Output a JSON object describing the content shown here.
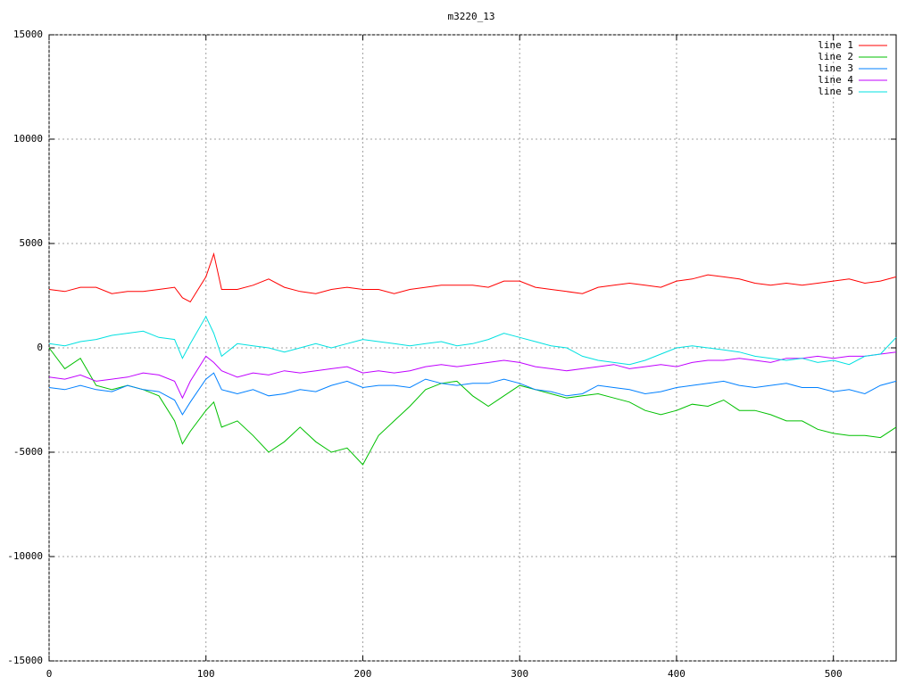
{
  "chart_data": {
    "type": "line",
    "title": "m3220_13",
    "x": [
      0,
      10,
      20,
      30,
      40,
      50,
      60,
      70,
      80,
      85,
      90,
      100,
      105,
      110,
      120,
      130,
      140,
      150,
      160,
      170,
      180,
      190,
      200,
      210,
      220,
      230,
      240,
      250,
      260,
      270,
      280,
      290,
      300,
      310,
      320,
      330,
      340,
      350,
      360,
      370,
      380,
      390,
      400,
      410,
      420,
      430,
      440,
      450,
      460,
      470,
      480,
      490,
      500,
      510,
      520,
      530,
      540
    ],
    "series": [
      {
        "name": "line 1",
        "color": "#ff0000",
        "values": [
          2800,
          2700,
          2900,
          2900,
          2600,
          2700,
          2700,
          2800,
          2900,
          2400,
          2200,
          3400,
          4500,
          2800,
          2800,
          3000,
          3300,
          2900,
          2700,
          2600,
          2800,
          2900,
          2800,
          2800,
          2600,
          2800,
          2900,
          3000,
          3000,
          3000,
          2900,
          3200,
          3200,
          2900,
          2800,
          2700,
          2600,
          2900,
          3000,
          3100,
          3000,
          2900,
          3200,
          3300,
          3500,
          3400,
          3300,
          3100,
          3000,
          3100,
          3000,
          3100,
          3200,
          3300,
          3100,
          3200,
          3400
        ]
      },
      {
        "name": "line 2",
        "color": "#00c000",
        "values": [
          0,
          -1000,
          -500,
          -1800,
          -2000,
          -1800,
          -2000,
          -2300,
          -3500,
          -4600,
          -4000,
          -3000,
          -2600,
          -3800,
          -3500,
          -4200,
          -5000,
          -4500,
          -3800,
          -4500,
          -5000,
          -4800,
          -5600,
          -4200,
          -3500,
          -2800,
          -2000,
          -1700,
          -1600,
          -2300,
          -2800,
          -2300,
          -1800,
          -2000,
          -2200,
          -2400,
          -2300,
          -2200,
          -2400,
          -2600,
          -3000,
          -3200,
          -3000,
          -2700,
          -2800,
          -2500,
          -3000,
          -3000,
          -3200,
          -3500,
          -3500,
          -3900,
          -4100,
          -4200,
          -4200,
          -4300,
          -3800
        ]
      },
      {
        "name": "line 3",
        "color": "#0080ff",
        "values": [
          -1900,
          -2000,
          -1800,
          -2000,
          -2100,
          -1800,
          -2000,
          -2100,
          -2500,
          -3200,
          -2600,
          -1500,
          -1200,
          -2000,
          -2200,
          -2000,
          -2300,
          -2200,
          -2000,
          -2100,
          -1800,
          -1600,
          -1900,
          -1800,
          -1800,
          -1900,
          -1500,
          -1700,
          -1800,
          -1700,
          -1700,
          -1500,
          -1700,
          -2000,
          -2100,
          -2300,
          -2200,
          -1800,
          -1900,
          -2000,
          -2200,
          -2100,
          -1900,
          -1800,
          -1700,
          -1600,
          -1800,
          -1900,
          -1800,
          -1700,
          -1900,
          -1900,
          -2100,
          -2000,
          -2200,
          -1800,
          -1600
        ]
      },
      {
        "name": "line 4",
        "color": "#c000ff",
        "values": [
          -1400,
          -1500,
          -1300,
          -1600,
          -1500,
          -1400,
          -1200,
          -1300,
          -1600,
          -2400,
          -1600,
          -400,
          -700,
          -1100,
          -1400,
          -1200,
          -1300,
          -1100,
          -1200,
          -1100,
          -1000,
          -900,
          -1200,
          -1100,
          -1200,
          -1100,
          -900,
          -800,
          -900,
          -800,
          -700,
          -600,
          -700,
          -900,
          -1000,
          -1100,
          -1000,
          -900,
          -800,
          -1000,
          -900,
          -800,
          -900,
          -700,
          -600,
          -600,
          -500,
          -600,
          -700,
          -500,
          -500,
          -400,
          -500,
          -400,
          -400,
          -300,
          -200
        ]
      },
      {
        "name": "line 5",
        "color": "#00e0e0",
        "values": [
          200,
          100,
          300,
          400,
          600,
          700,
          800,
          500,
          400,
          -500,
          200,
          1500,
          700,
          -400,
          200,
          100,
          0,
          -200,
          0,
          200,
          0,
          200,
          400,
          300,
          200,
          100,
          200,
          300,
          100,
          200,
          400,
          700,
          500,
          300,
          100,
          0,
          -400,
          -600,
          -700,
          -800,
          -600,
          -300,
          0,
          100,
          0,
          -100,
          -200,
          -400,
          -500,
          -600,
          -500,
          -700,
          -600,
          -800,
          -400,
          -300,
          500
        ]
      }
    ],
    "xlim": [
      0,
      540
    ],
    "xticks": [
      0,
      100,
      200,
      300,
      400,
      500
    ],
    "ylim": [
      -15000,
      15000
    ],
    "yticks": [
      -15000,
      -10000,
      -5000,
      0,
      5000,
      10000,
      15000
    ],
    "grid": true,
    "legend": "top-right"
  }
}
